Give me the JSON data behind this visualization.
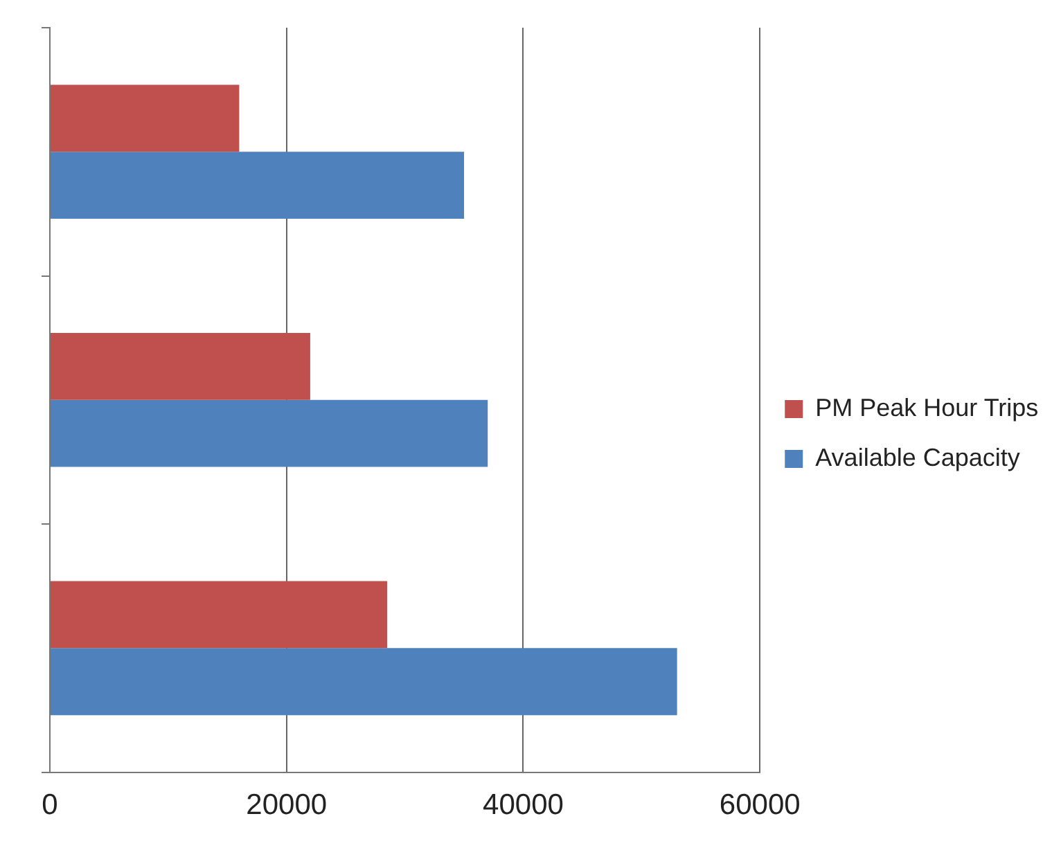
{
  "chart_data": {
    "type": "bar",
    "orientation": "horizontal",
    "categories": [
      null,
      null,
      null
    ],
    "series": [
      {
        "name": "PM Peak Hour Trips",
        "color": "#c0504d",
        "values": [
          16000,
          22000,
          28500
        ]
      },
      {
        "name": "Available Capacity",
        "color": "#4f81bd",
        "values": [
          35000,
          37000,
          53000
        ]
      }
    ],
    "xlim": [
      0,
      60000
    ],
    "xticks": [
      0,
      20000,
      40000,
      60000
    ],
    "grid": "x",
    "legend": "right",
    "tick_labels": "x"
  }
}
